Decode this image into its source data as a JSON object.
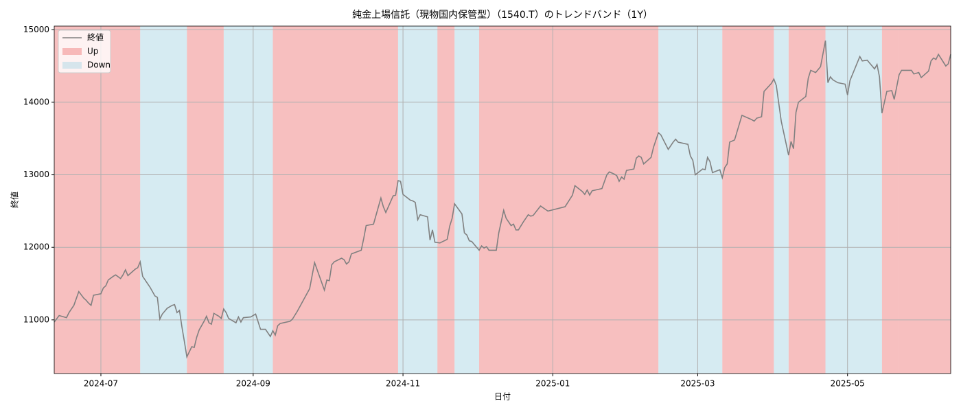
{
  "chart_data": {
    "type": "line",
    "title": "純金上場信託（現物国内保管型）（1540.T）のトレンドバンド（1Y）",
    "xlabel": "日付",
    "ylabel": "終値",
    "xlim": [
      0,
      365
    ],
    "xticks": [
      {
        "value": 19,
        "label": "2024-07"
      },
      {
        "value": 81,
        "label": "2024-09"
      },
      {
        "value": 142,
        "label": "2024-11"
      },
      {
        "value": 203,
        "label": "2025-01"
      },
      {
        "value": 262,
        "label": "2025-03"
      },
      {
        "value": 323,
        "label": "2025-05"
      }
    ],
    "ylim": [
      10260,
      15050
    ],
    "yticks": [
      11000,
      12000,
      13000,
      14000,
      15000
    ],
    "grid": true,
    "legend": "upper left",
    "x": [
      0,
      2,
      5,
      6,
      7,
      8,
      10,
      12,
      13,
      14,
      15,
      16,
      19,
      20,
      21,
      22,
      24,
      25,
      27,
      28,
      29,
      30,
      33,
      34,
      35,
      36,
      39,
      41,
      42,
      43,
      44,
      46,
      48,
      49,
      50,
      51,
      52,
      53,
      54,
      56,
      57,
      58,
      59,
      61,
      62,
      63,
      64,
      65,
      67,
      68,
      69,
      70,
      71,
      74,
      75,
      76,
      77,
      80,
      81,
      82,
      84,
      86,
      88,
      89,
      90,
      91,
      92,
      96,
      97,
      99,
      104,
      106,
      110,
      111,
      112,
      113,
      114,
      117,
      118,
      119,
      120,
      121,
      125,
      126,
      127,
      130,
      133,
      134,
      135,
      138,
      139,
      140,
      141,
      142,
      145,
      146,
      147,
      148,
      149,
      152,
      153,
      154,
      155,
      157,
      160,
      161,
      162,
      163,
      166,
      167,
      168,
      169,
      170,
      173,
      174,
      175,
      176,
      177,
      180,
      181,
      183,
      184,
      185,
      186,
      187,
      188,
      189,
      191,
      193,
      194,
      195,
      198,
      201,
      208,
      211,
      212,
      215,
      216,
      217,
      218,
      219,
      223,
      225,
      226,
      228,
      229,
      230,
      231,
      232,
      233,
      236,
      237,
      238,
      239,
      240,
      243,
      244,
      246,
      247,
      250,
      252,
      253,
      254,
      258,
      259,
      260,
      261,
      264,
      265,
      266,
      267,
      268,
      271,
      272,
      273,
      274,
      275,
      277,
      280,
      284,
      285,
      286,
      288,
      289,
      292,
      293,
      294,
      296,
      299,
      300,
      301,
      302,
      303,
      306,
      307,
      308,
      310,
      312,
      314,
      315,
      316,
      317,
      319,
      322,
      323,
      324,
      328,
      329,
      331,
      334,
      335,
      336,
      337,
      339,
      341,
      342,
      344,
      345,
      349,
      350,
      352,
      353,
      356,
      357,
      358,
      359,
      360,
      363,
      364,
      365
    ],
    "series": [
      {
        "name": "終値",
        "color": "#808080",
        "values": [
          10970,
          11060,
          11030,
          11100,
          11150,
          11200,
          11390,
          11300,
          11270,
          11230,
          11200,
          11340,
          11360,
          11440,
          11470,
          11550,
          11600,
          11620,
          11570,
          11620,
          11690,
          11610,
          11700,
          11720,
          11800,
          11600,
          11450,
          11330,
          11310,
          11010,
          11080,
          11160,
          11200,
          11210,
          11100,
          11130,
          10900,
          10700,
          10490,
          10630,
          10620,
          10760,
          10860,
          10980,
          11050,
          10960,
          10940,
          11090,
          11050,
          11020,
          11150,
          11100,
          11020,
          10960,
          11040,
          10970,
          11030,
          11040,
          11060,
          11080,
          10870,
          10870,
          10770,
          10850,
          10790,
          10920,
          10950,
          10980,
          11010,
          11120,
          11430,
          11790,
          11410,
          11550,
          11540,
          11760,
          11800,
          11850,
          11830,
          11770,
          11800,
          11910,
          11960,
          12120,
          12300,
          12320,
          12680,
          12560,
          12480,
          12710,
          12720,
          12920,
          12910,
          12730,
          12650,
          12640,
          12620,
          12380,
          12450,
          12420,
          12100,
          12240,
          12070,
          12060,
          12110,
          12290,
          12400,
          12600,
          12460,
          12200,
          12170,
          12090,
          12080,
          11960,
          12020,
          11990,
          12010,
          11960,
          11960,
          12200,
          12510,
          12400,
          12350,
          12300,
          12320,
          12240,
          12240,
          12350,
          12450,
          12430,
          12440,
          12570,
          12500,
          12560,
          12720,
          12850,
          12770,
          12730,
          12790,
          12720,
          12780,
          12810,
          13000,
          13040,
          13010,
          12990,
          12910,
          12970,
          12940,
          13060,
          13080,
          13230,
          13260,
          13240,
          13150,
          13240,
          13380,
          13580,
          13550,
          13350,
          13450,
          13490,
          13450,
          13420,
          13260,
          13200,
          13000,
          13080,
          13070,
          13240,
          13180,
          13030,
          13070,
          12960,
          13100,
          13150,
          13450,
          13480,
          13820,
          13760,
          13740,
          13780,
          13800,
          14150,
          14260,
          14320,
          14230,
          13740,
          13270,
          13460,
          13360,
          13860,
          14000,
          14080,
          14330,
          14440,
          14410,
          14490,
          14850,
          14270,
          14350,
          14310,
          14270,
          14250,
          14100,
          14300,
          14630,
          14570,
          14580,
          14460,
          14520,
          14350,
          13850,
          14150,
          14160,
          14040,
          14380,
          14440,
          14440,
          14390,
          14410,
          14340,
          14430,
          14570,
          14610,
          14590,
          14660,
          14500,
          14530,
          14660
        ]
      }
    ],
    "bands": [
      {
        "name": "Up",
        "color": "#f08080",
        "alpha": 0.5,
        "spans": [
          [
            0,
            35
          ],
          [
            54,
            69
          ],
          [
            89,
            140
          ],
          [
            156,
            163
          ],
          [
            173,
            246
          ],
          [
            272,
            293
          ],
          [
            299,
            314
          ],
          [
            337,
            344
          ],
          [
            344,
            365
          ]
        ]
      },
      {
        "name": "Down",
        "color": "#add8e6",
        "alpha": 0.5,
        "spans": [
          [
            35,
            54
          ],
          [
            69,
            89
          ],
          [
            140,
            156
          ],
          [
            163,
            173
          ],
          [
            246,
            272
          ],
          [
            293,
            299
          ],
          [
            314,
            337
          ]
        ]
      }
    ]
  }
}
